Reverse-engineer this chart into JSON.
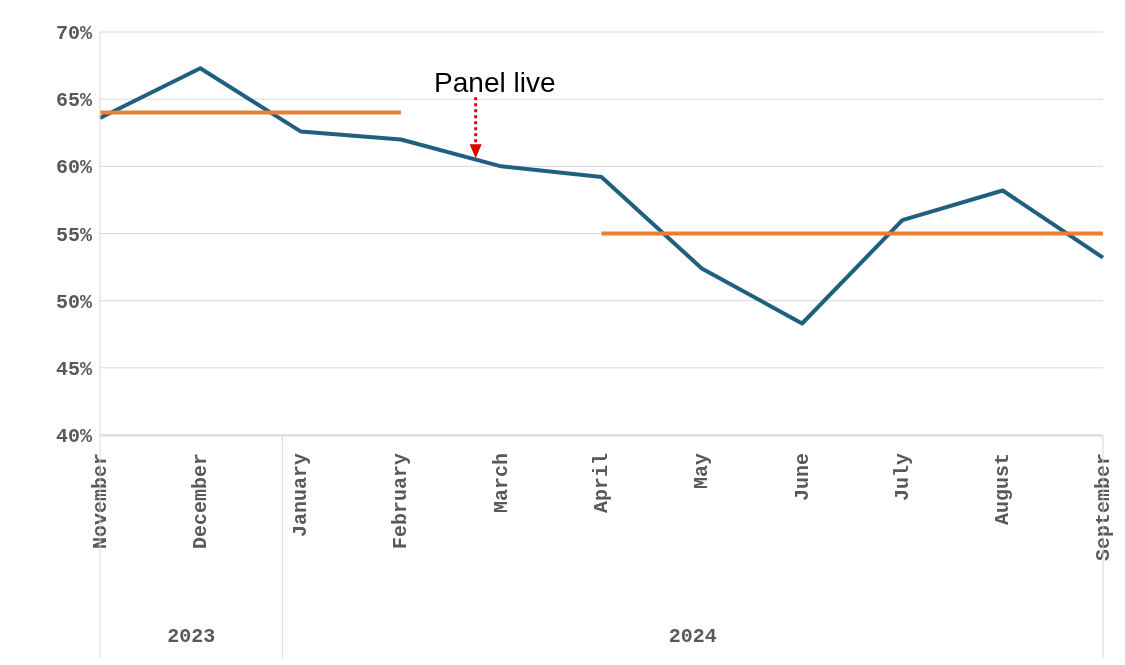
{
  "chart_data": {
    "type": "line",
    "categories": [
      "November",
      "December",
      "January",
      "February",
      "March",
      "April",
      "May",
      "June",
      "July",
      "August",
      "September"
    ],
    "series": [
      {
        "color": "#1f5f7f",
        "values": [
          63.6,
          67.3,
          62.6,
          62.0,
          60.0,
          59.2,
          52.4,
          48.3,
          56.0,
          58.2,
          53.2
        ]
      },
      {
        "color": "#ed7d31",
        "values": [
          64.0,
          64.0,
          64.0,
          64.0,
          null,
          null,
          null,
          null,
          null,
          null,
          null
        ]
      },
      {
        "color": "#ed7d31",
        "values": [
          null,
          null,
          null,
          null,
          null,
          55.0,
          55.0,
          55.0,
          55.0,
          55.0,
          55.0
        ]
      }
    ],
    "ylim": [
      40,
      70
    ],
    "yticks": [
      {
        "value": 40,
        "label": "40%"
      },
      {
        "value": 45,
        "label": "45%"
      },
      {
        "value": 50,
        "label": "50%"
      },
      {
        "value": 55,
        "label": "55%"
      },
      {
        "value": 60,
        "label": "60%"
      },
      {
        "value": 65,
        "label": "65%"
      },
      {
        "value": 70,
        "label": "70%"
      }
    ],
    "grid": "y",
    "marker": "none",
    "line_style": "solid",
    "annotations": [
      {
        "text": "Panel live",
        "y": 60.6
      },
      "2023",
      "2024"
    ]
  }
}
